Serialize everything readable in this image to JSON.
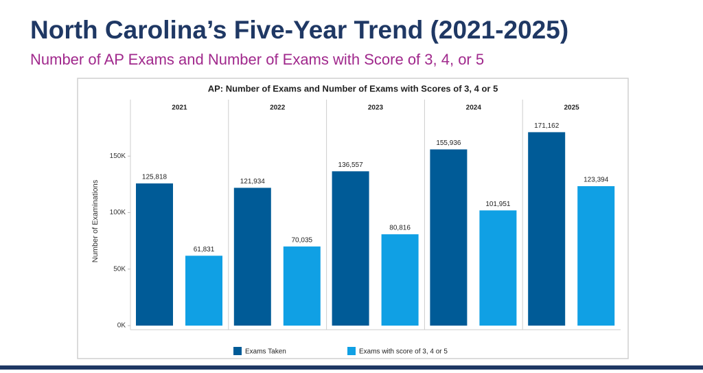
{
  "header": {
    "title": "North Carolina’s Five-Year Trend (2021-2025)",
    "subtitle": "Number of AP Exams and Number of Exams with Score of 3, 4, or 5"
  },
  "chart_data": {
    "type": "bar",
    "title": "AP: Number of Exams and Number of Exams with Scores of 3, 4 or 5",
    "y_label": "Number of Examinations",
    "categories": [
      "2021",
      "2022",
      "2023",
      "2024",
      "2025"
    ],
    "series": [
      {
        "name": "Exams Taken",
        "color": "#005b97",
        "values": [
          125818,
          121934,
          136557,
          155936,
          171162
        ],
        "value_labels": [
          "125,818",
          "121,934",
          "136,557",
          "155,936",
          "171,162"
        ]
      },
      {
        "name": "Exams with score of 3, 4 or 5",
        "color": "#10a0e4",
        "values": [
          61831,
          70035,
          80816,
          101951,
          123394
        ],
        "value_labels": [
          "61,831",
          "70,035",
          "80,816",
          "101,951",
          "123,394"
        ]
      }
    ],
    "ylim": [
      0,
      200000
    ],
    "yticks": [
      {
        "value": 0,
        "label": "0K"
      },
      {
        "value": 50000,
        "label": "50K"
      },
      {
        "value": 100000,
        "label": "100K"
      },
      {
        "value": 150000,
        "label": "150K"
      }
    ]
  }
}
